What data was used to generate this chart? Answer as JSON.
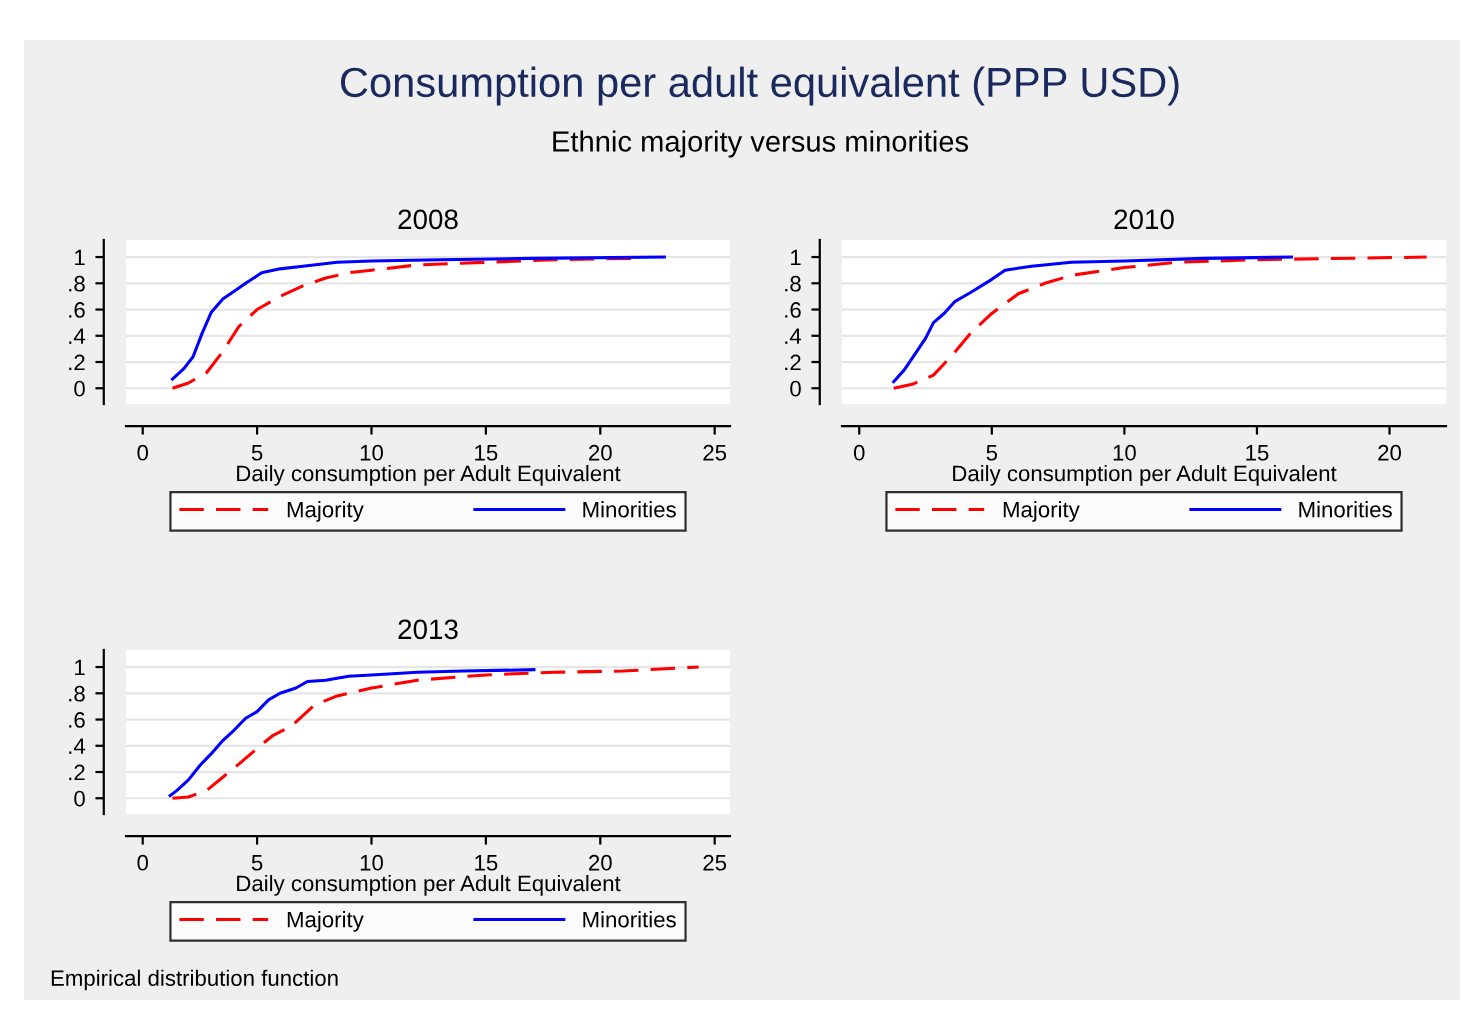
{
  "chart_data": [
    {
      "type": "other",
      "title": "Consumption per adult equivalent (PPP USD)",
      "subtitle": "Ethnic majority versus minorities",
      "annotations": [
        "Empirical distribution function"
      ]
    },
    {
      "type": "line",
      "title": "2008",
      "xlabel": "Daily consumption per Adult Equivalent",
      "xlim": [
        -0.73,
        25.67
      ],
      "xticks": [
        0,
        5,
        10,
        15,
        20,
        25
      ],
      "ylim": [
        -0.12,
        1.13
      ],
      "yticks": [
        {
          "value": 0,
          "label": "0"
        },
        {
          "value": 0.2,
          "label": ".2"
        },
        {
          "value": 0.4,
          "label": ".4"
        },
        {
          "value": 0.6,
          "label": ".6"
        },
        {
          "value": 0.8,
          "label": ".8"
        },
        {
          "value": 1,
          "label": "1"
        }
      ],
      "grid": "y",
      "legend": "bottom",
      "series": [
        {
          "name": "Majority",
          "color": "#ff0000",
          "line_style": "dashed",
          "x": [
            1.3,
            2,
            2.8,
            3.5,
            4.2,
            5,
            6,
            7,
            8,
            9,
            10,
            12,
            15,
            18,
            21.5
          ],
          "values": [
            0,
            0.04,
            0.12,
            0.28,
            0.47,
            0.6,
            0.7,
            0.78,
            0.84,
            0.88,
            0.9,
            0.94,
            0.96,
            0.98,
            0.99
          ]
        },
        {
          "name": "Minorities",
          "color": "#0000ff",
          "line_style": "solid",
          "x": [
            1.3,
            1.8,
            2.2,
            2.6,
            3,
            3.5,
            4,
            4.5,
            5.2,
            6,
            7,
            8.5,
            10,
            13,
            17,
            22.8
          ],
          "values": [
            0.07,
            0.15,
            0.24,
            0.42,
            0.58,
            0.68,
            0.74,
            0.8,
            0.88,
            0.91,
            0.93,
            0.96,
            0.97,
            0.98,
            0.99,
            1
          ]
        }
      ]
    },
    {
      "type": "line",
      "title": "2010",
      "xlabel": "Daily consumption per Adult Equivalent",
      "xlim": [
        -0.65,
        22.13
      ],
      "xticks": [
        0,
        5,
        10,
        15,
        20
      ],
      "ylim": [
        -0.12,
        1.13
      ],
      "yticks": [
        {
          "value": 0,
          "label": "0"
        },
        {
          "value": 0.2,
          "label": ".2"
        },
        {
          "value": 0.4,
          "label": ".4"
        },
        {
          "value": 0.6,
          "label": ".6"
        },
        {
          "value": 0.8,
          "label": ".8"
        },
        {
          "value": 1,
          "label": "1"
        }
      ],
      "grid": "y",
      "legend": "bottom",
      "series": [
        {
          "name": "Majority",
          "color": "#ff0000",
          "line_style": "dashed",
          "x": [
            1.3,
            2,
            2.8,
            3.5,
            4.2,
            5,
            6,
            7,
            8,
            10,
            12,
            15,
            21.4
          ],
          "values": [
            0,
            0.03,
            0.1,
            0.25,
            0.42,
            0.57,
            0.72,
            0.8,
            0.86,
            0.92,
            0.96,
            0.98,
            1
          ]
        },
        {
          "name": "Minorities",
          "color": "#0000ff",
          "line_style": "solid",
          "x": [
            1.3,
            1.7,
            2,
            2.5,
            2.8,
            3.2,
            3.6,
            4.2,
            5,
            5.5,
            6.5,
            8,
            10,
            13,
            16.3
          ],
          "values": [
            0.05,
            0.14,
            0.23,
            0.38,
            0.5,
            0.57,
            0.66,
            0.73,
            0.83,
            0.9,
            0.93,
            0.96,
            0.97,
            0.99,
            1
          ]
        }
      ]
    },
    {
      "type": "line",
      "title": "2013",
      "xlabel": "Daily consumption per Adult Equivalent",
      "xlim": [
        -0.73,
        25.67
      ],
      "xticks": [
        0,
        5,
        10,
        15,
        20,
        25
      ],
      "ylim": [
        -0.12,
        1.13
      ],
      "yticks": [
        {
          "value": 0,
          "label": "0"
        },
        {
          "value": 0.2,
          "label": ".2"
        },
        {
          "value": 0.4,
          "label": ".4"
        },
        {
          "value": 0.6,
          "label": ".6"
        },
        {
          "value": 0.8,
          "label": ".8"
        },
        {
          "value": 1,
          "label": "1"
        }
      ],
      "grid": "y",
      "legend": "bottom",
      "series": [
        {
          "name": "Majority",
          "color": "#ff0000",
          "line_style": "dashed",
          "x": [
            1.3,
            2,
            2.8,
            3.5,
            4.2,
            5,
            5.7,
            6.5,
            7.5,
            8.5,
            10,
            12,
            15,
            18,
            21,
            24.3
          ],
          "values": [
            0,
            0.01,
            0.06,
            0.16,
            0.26,
            0.38,
            0.48,
            0.55,
            0.71,
            0.78,
            0.84,
            0.9,
            0.94,
            0.96,
            0.97,
            1
          ]
        },
        {
          "name": "Minorities",
          "color": "#0000ff",
          "line_style": "solid",
          "x": [
            1.2,
            1.5,
            2,
            2.5,
            3,
            3.5,
            4,
            4.5,
            5,
            5.5,
            6,
            6.7,
            7.2,
            8,
            9,
            10,
            12,
            14,
            17.1
          ],
          "values": [
            0.02,
            0.06,
            0.14,
            0.25,
            0.34,
            0.44,
            0.52,
            0.61,
            0.66,
            0.75,
            0.8,
            0.84,
            0.89,
            0.9,
            0.93,
            0.94,
            0.96,
            0.97,
            0.98
          ]
        }
      ]
    }
  ]
}
